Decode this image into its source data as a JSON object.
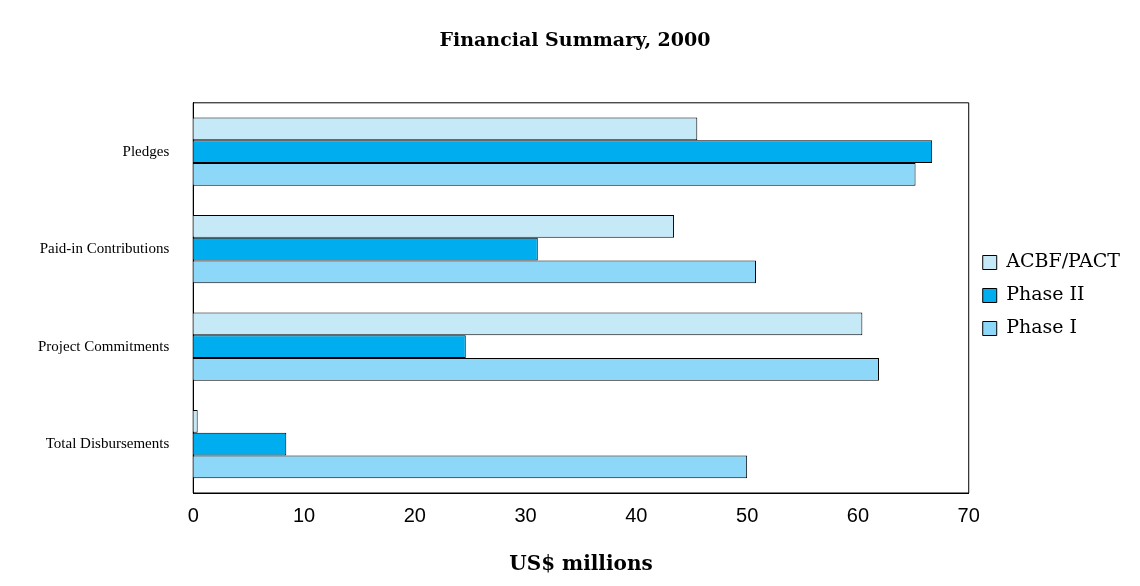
{
  "chart_data": {
    "type": "bar",
    "orientation": "horizontal",
    "title": "Financial Summary, 2000",
    "xlabel": "US$ millions",
    "categories": [
      "Pledges",
      "Paid-in Contributions",
      "Project Commitments",
      "Total Disbursements"
    ],
    "series": [
      {
        "name": "ACBF/PACT",
        "color": "#c6e9f8",
        "values": [
          45.5,
          43.4,
          60.4,
          0.4
        ]
      },
      {
        "name": "Phase II",
        "color": "#00aeef",
        "values": [
          66.7,
          31.1,
          24.6,
          8.4
        ]
      },
      {
        "name": "Phase I",
        "color": "#8dd8f8",
        "values": [
          65.2,
          50.8,
          61.9,
          50
        ]
      }
    ],
    "xlim": [
      0,
      70
    ],
    "xticks": [
      0,
      10,
      20,
      30,
      40,
      50,
      60,
      70
    ],
    "grid": false,
    "legend": "right"
  }
}
